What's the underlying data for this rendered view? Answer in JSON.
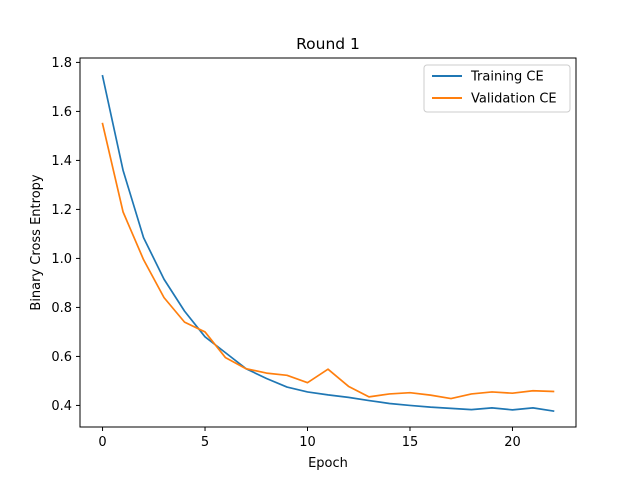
{
  "chart_data": {
    "type": "line",
    "title": "Round 1",
    "xlabel": "Epoch",
    "ylabel": "Binary Cross Entropy",
    "xlim": [
      -1.1,
      23.1
    ],
    "ylim": [
      0.312,
      1.818
    ],
    "xticks": [
      0,
      5,
      10,
      15,
      20
    ],
    "yticks": [
      0.4,
      0.6,
      0.8,
      1.0,
      1.2,
      1.4,
      1.6,
      1.8
    ],
    "ytick_labels": [
      "0.4",
      "0.6",
      "0.8",
      "1.0",
      "1.2",
      "1.4",
      "1.6",
      "1.8"
    ],
    "grid": false,
    "legend_position": "upper right",
    "x": [
      0,
      1,
      2,
      3,
      4,
      5,
      6,
      7,
      8,
      9,
      10,
      11,
      12,
      13,
      14,
      15,
      16,
      17,
      18,
      19,
      20,
      21,
      22
    ],
    "series": [
      {
        "name": "Training CE",
        "color": "#1f77b4",
        "values": [
          1.745,
          1.36,
          1.085,
          0.915,
          0.785,
          0.68,
          0.615,
          0.55,
          0.51,
          0.475,
          0.455,
          0.443,
          0.433,
          0.42,
          0.408,
          0.4,
          0.393,
          0.388,
          0.383,
          0.39,
          0.382,
          0.39,
          0.377
        ]
      },
      {
        "name": "Validation CE",
        "color": "#ff7f0e",
        "values": [
          1.55,
          1.19,
          0.995,
          0.84,
          0.74,
          0.7,
          0.595,
          0.55,
          0.532,
          0.523,
          0.493,
          0.548,
          0.478,
          0.435,
          0.447,
          0.452,
          0.442,
          0.428,
          0.447,
          0.455,
          0.45,
          0.46,
          0.457
        ]
      }
    ]
  }
}
